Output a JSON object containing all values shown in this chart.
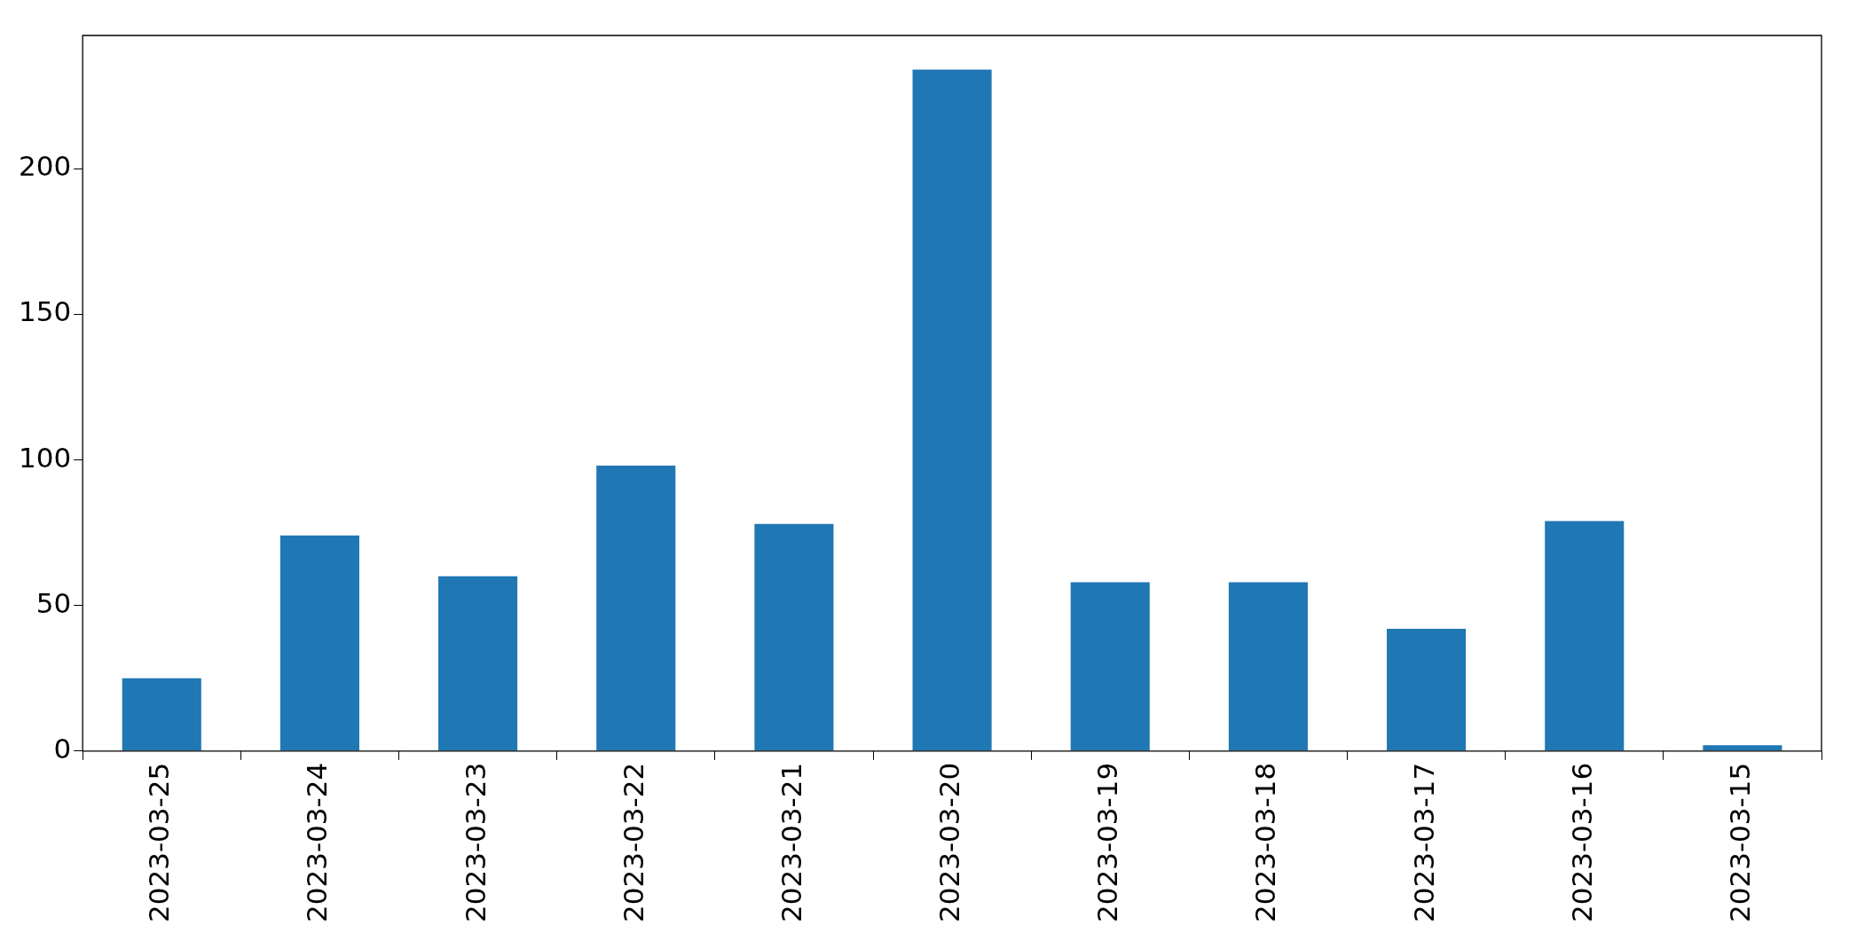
{
  "chart_data": {
    "type": "bar",
    "categories": [
      "2023-03-25",
      "2023-03-24",
      "2023-03-23",
      "2023-03-22",
      "2023-03-21",
      "2023-03-20",
      "2023-03-19",
      "2023-03-18",
      "2023-03-17",
      "2023-03-16",
      "2023-03-15"
    ],
    "values": [
      25,
      74,
      60,
      98,
      78,
      234,
      58,
      58,
      42,
      79,
      2
    ],
    "color": "#1f77b4",
    "ylim": [
      0,
      245.7
    ],
    "yticks": [
      0,
      50,
      100,
      150,
      200
    ],
    "grid": false,
    "legend": false
  }
}
